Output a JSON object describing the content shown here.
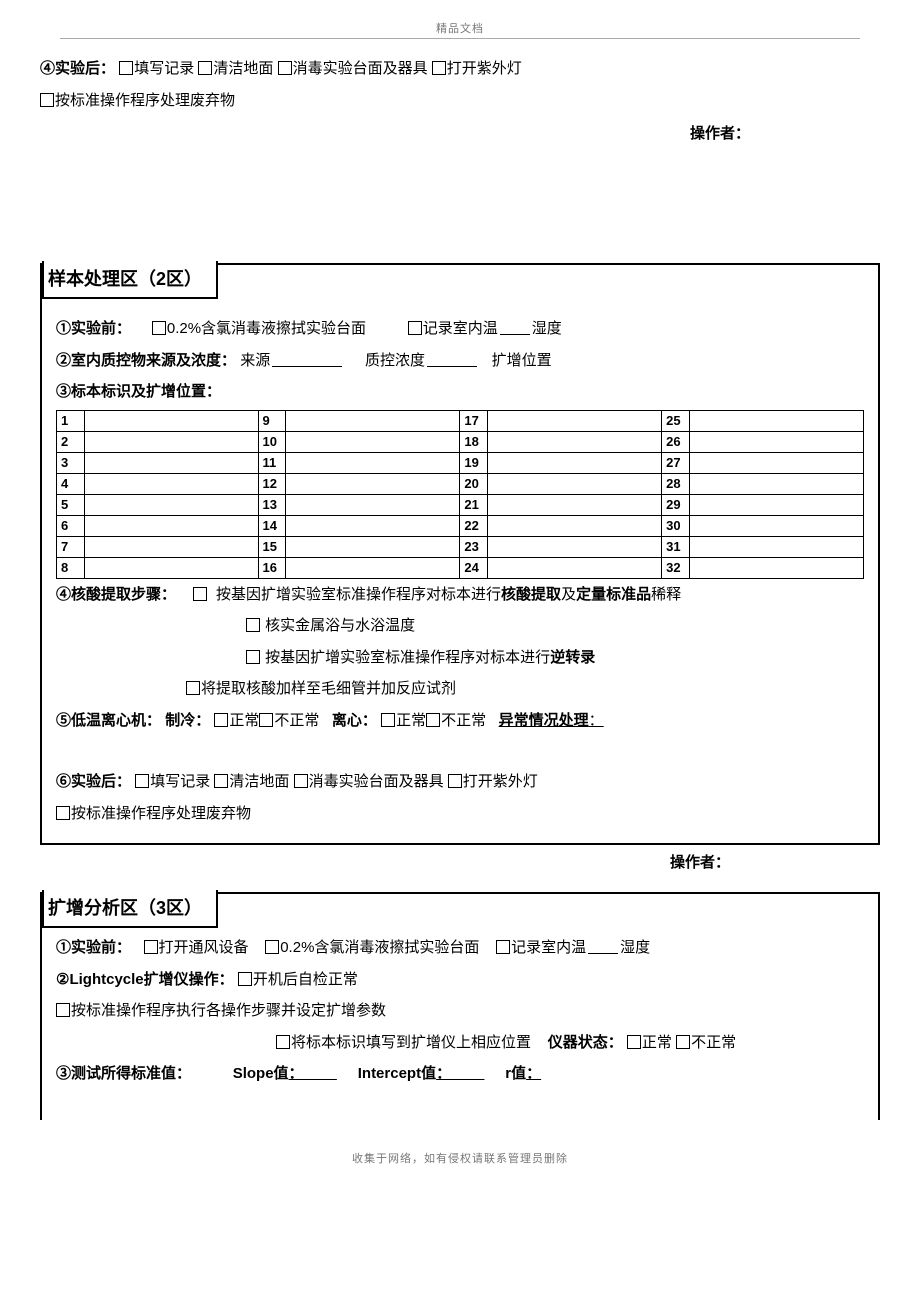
{
  "header_note": "精品文档",
  "footer_note": "收集于网络，如有侵权请联系管理员删除",
  "top": {
    "step4_prefix": "④实验后：",
    "cb_a": "填写记录",
    "cb_b": "清洁地面",
    "cb_c": "消毒实验台面及器具",
    "cb_d": "打开紫外灯",
    "cb_e": "按标准操作程序处理废弃物",
    "operator_label": "操作者："
  },
  "zone2": {
    "title": "样本处理区（2区）",
    "step1_prefix": "①实验前：",
    "s1_cb1": "0.2%含氯消毒液擦拭实验台面",
    "s1_cb2_a": "记录室内温",
    "s1_cb2_b": "湿度",
    "step2_prefix": "②室内质控物来源及浓度：",
    "s2_a": "来源",
    "s2_b": "质控浓度",
    "s2_c": "扩增位置",
    "step3_prefix": "③标本标识及扩增位置：",
    "plate": {
      "rows": 8,
      "cols": 4,
      "labels": [
        [
          "1",
          "9",
          "17",
          "25"
        ],
        [
          "2",
          "10",
          "18",
          "26"
        ],
        [
          "3",
          "11",
          "19",
          "27"
        ],
        [
          "4",
          "12",
          "20",
          "28"
        ],
        [
          "5",
          "13",
          "21",
          "29"
        ],
        [
          "6",
          "14",
          "22",
          "30"
        ],
        [
          "7",
          "15",
          "23",
          "31"
        ],
        [
          "8",
          "16",
          "24",
          "32"
        ]
      ]
    },
    "step4_prefix": "④核酸提取步骤：",
    "s4_cb1_a": "按基因扩增实验室标准操作程序对标本进行",
    "s4_cb1_b": "核酸提取",
    "s4_cb1_c": "及",
    "s4_cb1_d": "定量标准品",
    "s4_cb1_e": "稀释",
    "s4_cb2": "核实金属浴与水浴温度",
    "s4_cb3_a": "按基因扩增实验室标准操作程序对标本进行",
    "s4_cb3_b": "逆转录",
    "s4_cb4": "将提取核酸加样至毛细管并加反应试剂",
    "step5_prefix": "⑤低温离心机：",
    "s5_cool": "制冷：",
    "s5_cb_n": "正常",
    "s5_cb_an": "不正常",
    "s5_spin": "离心：",
    "s5_ab_label": "异常情况处理",
    "step6_prefix": "⑥实验后：",
    "cb_a": "填写记录",
    "cb_b": "清洁地面",
    "cb_c": "消毒实验台面及器具",
    "cb_d": "打开紫外灯",
    "cb_e": "按标准操作程序处理废弃物",
    "operator_label": "操作者："
  },
  "zone3": {
    "title": "扩增分析区（3区）",
    "step1_prefix": "①实验前：",
    "s1_cb1": "打开通风设备",
    "s1_cb2": "0.2%含氯消毒液擦拭实验台面",
    "s1_cb3_a": "记录室内温",
    "s1_cb3_b": "湿度",
    "step2_prefix": "②Lightcycle扩增仪操作：",
    "s2_cb1": "开机后自检正常",
    "s2_cb2": "按标准操作程序执行各操作步骤并设定扩增参数",
    "s2_cb3": "将标本标识填写到扩增仪上相应位置",
    "s2_inst_label": "仪器状态：",
    "s2_inst_n": "正常",
    "s2_inst_an": "不正常",
    "step3_prefix": "③测试所得标准值：",
    "s3_slope": "Slope值",
    "s3_intercept": "Intercept值",
    "s3_r": "r值"
  }
}
